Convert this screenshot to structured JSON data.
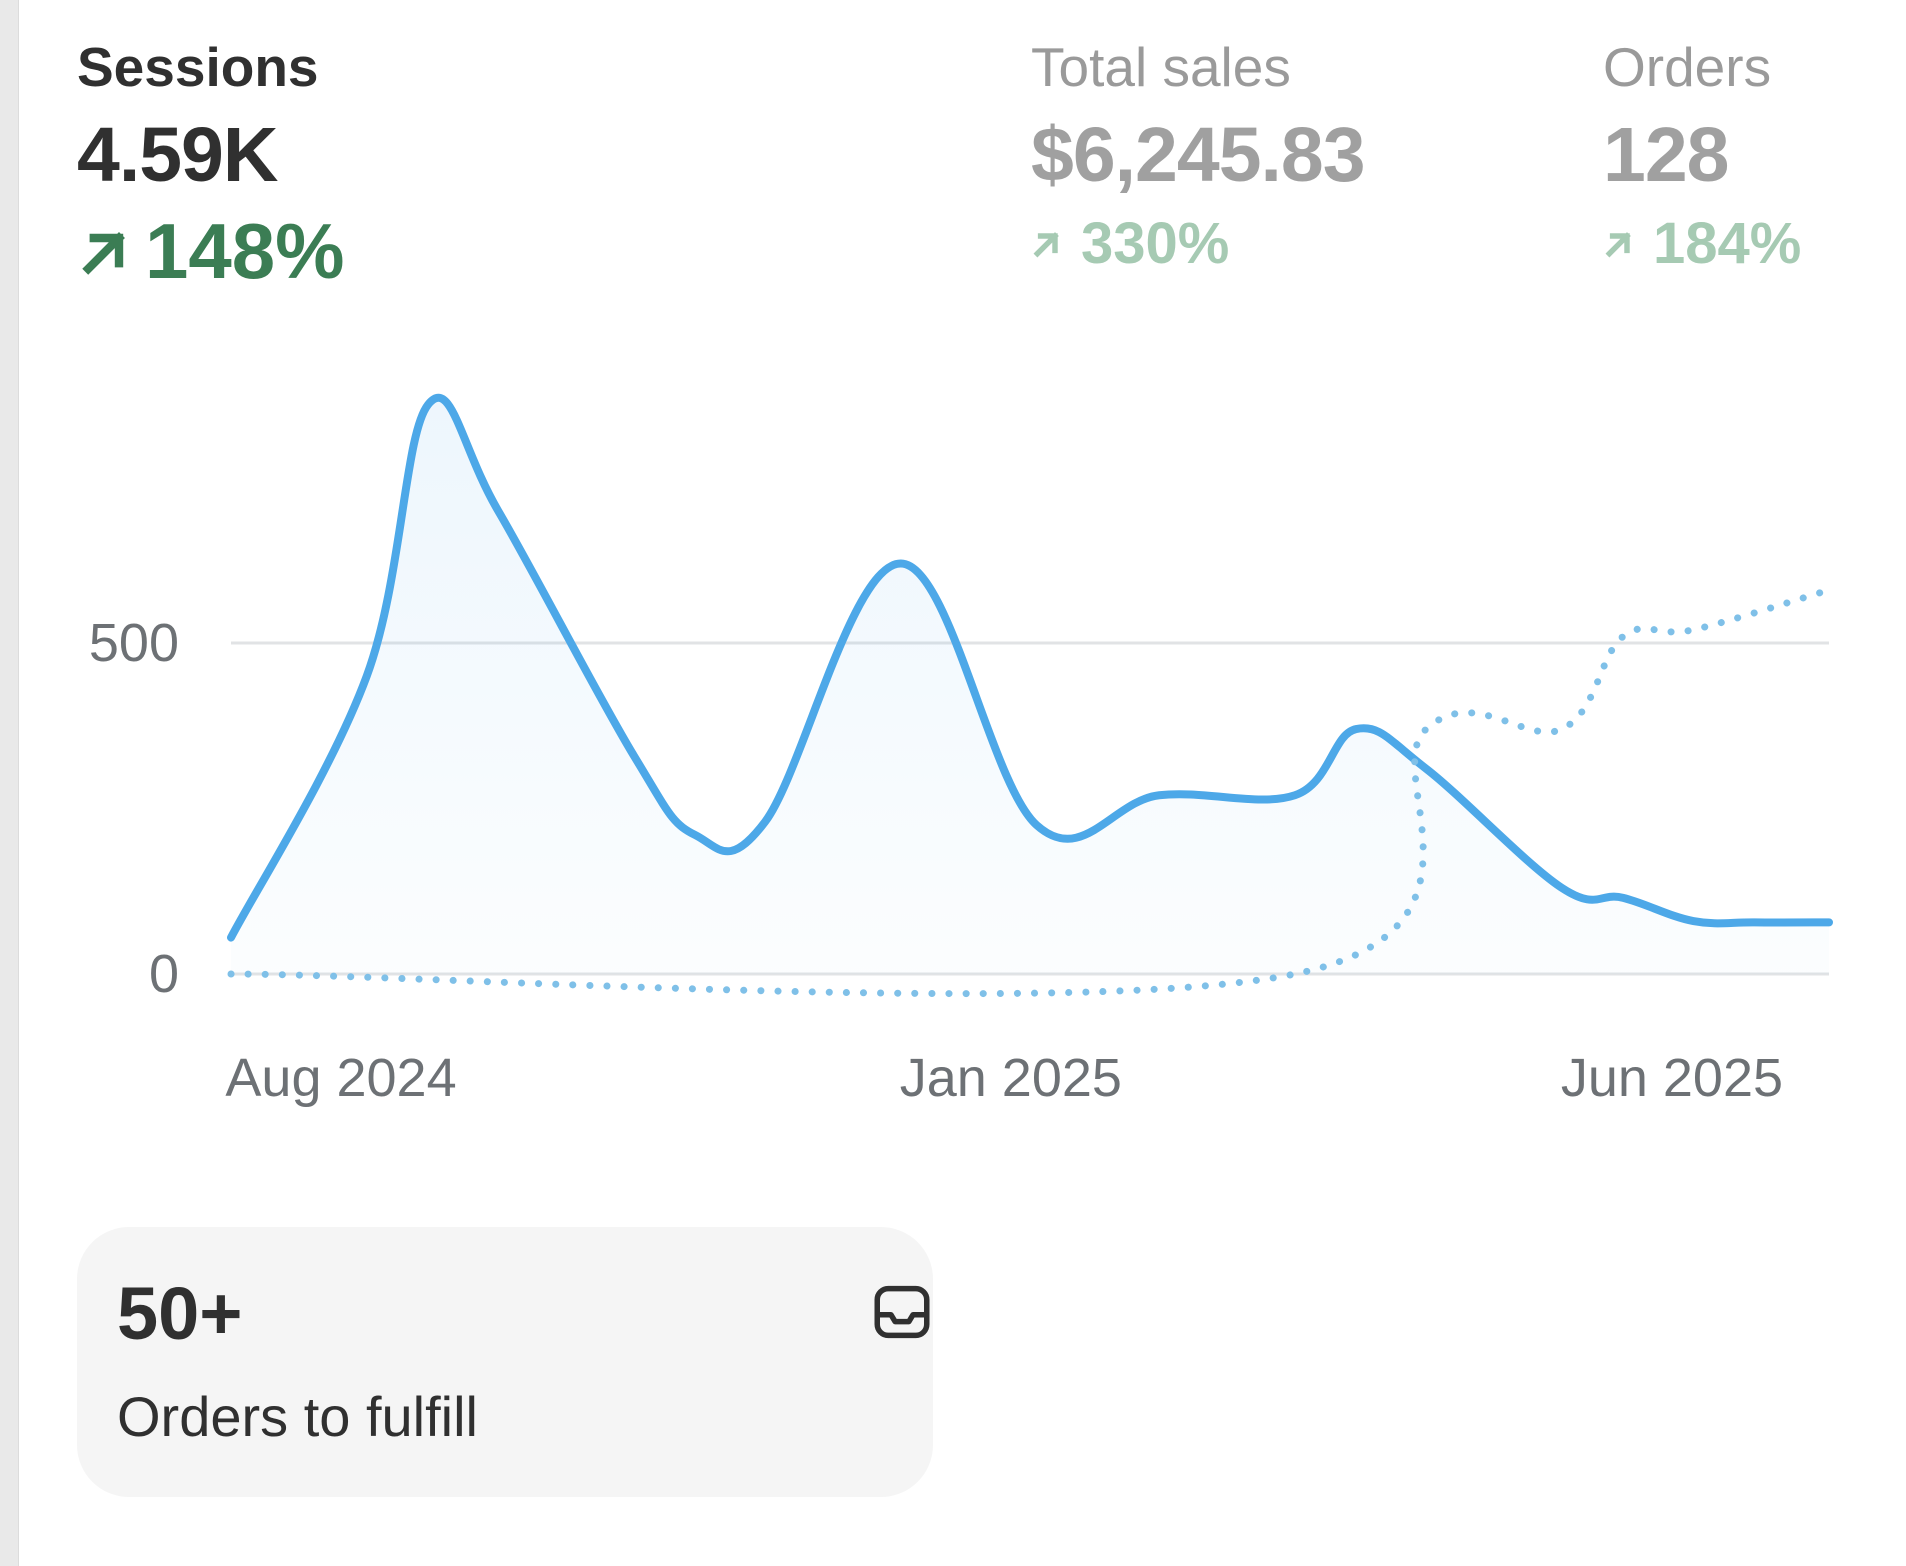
{
  "metrics": [
    {
      "label": "Sessions",
      "value": "4.59K",
      "change": "148%",
      "direction": "up"
    },
    {
      "label": "Total sales",
      "value": "$6,245.83",
      "change": "330%",
      "direction": "up"
    },
    {
      "label": "Orders",
      "value": "128",
      "change": "184%",
      "direction": "up"
    }
  ],
  "colors": {
    "series_line": "#4da8e8",
    "positive": "#3b7d54",
    "positive_dim": "#a6cab3"
  },
  "chart_data": {
    "type": "line",
    "ylim": [
      0,
      1000
    ],
    "y_ticks": [
      "0",
      "500"
    ],
    "x_tick_labels": [
      "Aug 2024",
      "Jan 2025",
      "Jun 2025"
    ],
    "x_range": [
      "2024-08",
      "2025-08"
    ],
    "grid": true,
    "series": [
      {
        "style": "solid",
        "x": [
          "2024-08",
          "2024-09",
          "2024-09-15",
          "2024-10",
          "2024-11",
          "2024-11-15",
          "2024-12",
          "2025-01",
          "2025-02",
          "2025-03",
          "2025-04",
          "2025-04-15",
          "2025-05",
          "2025-06",
          "2025-06-15",
          "2025-07",
          "2025-07-15",
          "2025-08"
        ],
        "values": [
          55,
          450,
          860,
          700,
          330,
          210,
          230,
          620,
          225,
          270,
          270,
          370,
          310,
          130,
          115,
          80,
          78,
          78
        ]
      },
      {
        "style": "dotted",
        "x": [
          "2024-08",
          "2025-04",
          "2025-05",
          "2025-06",
          "2025-06-15",
          "2025-07",
          "2025-08"
        ],
        "values": [
          0,
          0,
          370,
          370,
          510,
          520,
          580
        ]
      }
    ]
  },
  "fulfill_card": {
    "count": "50+",
    "caption": "Orders to fulfill",
    "icon": "inbox-icon"
  }
}
